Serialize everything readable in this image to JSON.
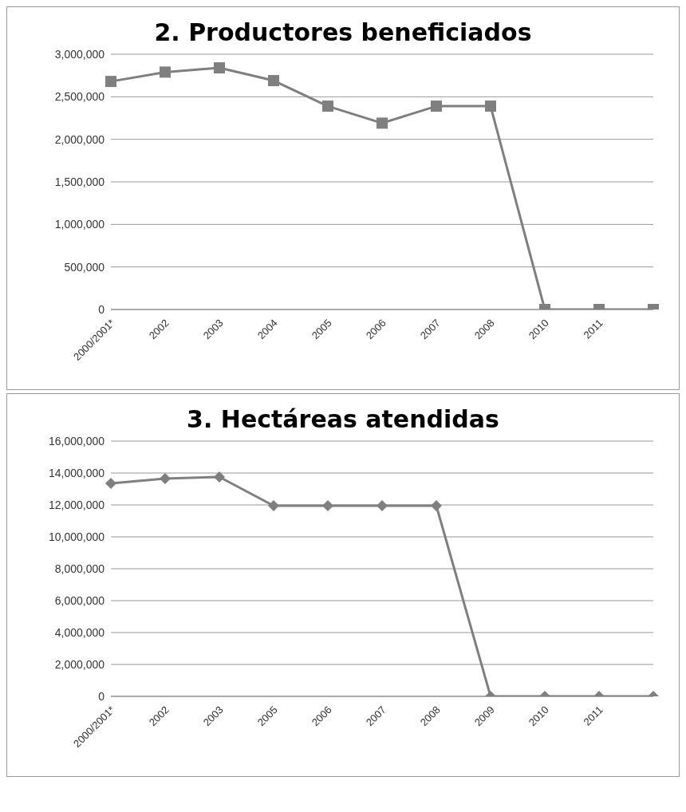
{
  "chart_data": [
    {
      "type": "line",
      "title": "2. Productores beneficiados",
      "categories": [
        "2000/2001*",
        "2002",
        "2003",
        "2004",
        "2005",
        "2006",
        "2007",
        "2008",
        "2010",
        "2011",
        null
      ],
      "series": [
        {
          "color": "#7f7f7f",
          "values": [
            2680000,
            2790000,
            2840000,
            2690000,
            2390000,
            2190000,
            2390000,
            2390000,
            0,
            0,
            0
          ]
        }
      ],
      "ylim": [
        0,
        3000000
      ],
      "yticks": [
        0,
        {
          "value": 500000,
          "label": "500,000"
        },
        {
          "value": 1000000,
          "label": "1,000,000"
        },
        {
          "value": 1500000,
          "label": "1,500,000"
        },
        {
          "value": 2000000,
          "label": "2,000,000"
        },
        {
          "value": 2500000,
          "label": "2,500,000"
        },
        {
          "value": 3000000,
          "label": "3,000,000"
        }
      ],
      "grid": "y",
      "legend": false,
      "marker": "square",
      "line_style": "solid"
    },
    {
      "type": "line",
      "title": "3. Hectáreas atendidas",
      "categories": [
        "2000/2001*",
        "2002",
        "2003",
        "2005",
        "2006",
        "2007",
        "2008",
        "2009",
        "2010",
        "2011",
        null
      ],
      "series": [
        {
          "color": "#7f7f7f",
          "values": [
            13350000,
            13650000,
            13750000,
            11950000,
            11950000,
            11950000,
            11950000,
            0,
            0,
            0,
            0
          ]
        }
      ],
      "ylim": [
        0,
        16000000
      ],
      "yticks": [
        0,
        {
          "value": 2000000,
          "label": "2,000,000"
        },
        {
          "value": 4000000,
          "label": "4,000,000"
        },
        {
          "value": 6000000,
          "label": "6,000,000"
        },
        {
          "value": 8000000,
          "label": "8,000,000"
        },
        {
          "value": 10000000,
          "label": "10,000,000"
        },
        {
          "value": 12000000,
          "label": "12,000,000"
        },
        {
          "value": 14000000,
          "label": "14,000,000"
        },
        {
          "value": 16000000,
          "label": "16,000,000"
        }
      ],
      "grid": "y",
      "legend": false,
      "marker": "diamond",
      "line_style": "solid"
    }
  ]
}
